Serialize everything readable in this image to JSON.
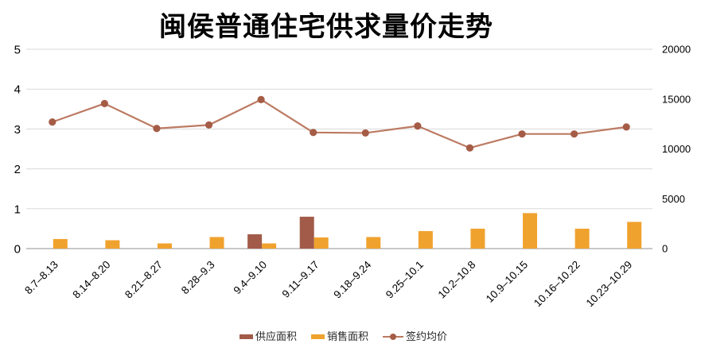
{
  "title": "闽侯普通住宅供求量价走势",
  "colors": {
    "supply_bar": "#A25B49",
    "sales_bar": "#F0A22E",
    "price_line": "#BC7A62",
    "price_marker": "#A55C46",
    "gridline": "#DADADA",
    "axis_line": "#C8C8C8",
    "tick_text": "#000000",
    "background": "#FFFFFF"
  },
  "chart_data": {
    "type": "combo",
    "title": "闽侯普通住宅供求量价走势",
    "categories": [
      "8.7–8.13",
      "8.14–8.20",
      "8.21–8.27",
      "8.28–9.3",
      "9.4–9.10",
      "9.11–9.17",
      "9.18–9.24",
      "9.25–10.1",
      "10.2–10.8",
      "10.9–10.15",
      "10.16–10.22",
      "10.23–10.29"
    ],
    "series": [
      {
        "name": "供应面积",
        "type": "bar",
        "axis": "left",
        "values": [
          0,
          0,
          0,
          0,
          0.36,
          0.8,
          0,
          0,
          0,
          0,
          0,
          0
        ]
      },
      {
        "name": "销售面积",
        "type": "bar",
        "axis": "left",
        "values": [
          0.24,
          0.21,
          0.13,
          0.29,
          0.13,
          0.28,
          0.29,
          0.44,
          0.5,
          0.89,
          0.5,
          0.67
        ]
      },
      {
        "name": "签约均价",
        "type": "line",
        "axis": "right",
        "values": [
          12700,
          14550,
          12050,
          12400,
          14950,
          11650,
          11600,
          12300,
          10100,
          11500,
          11500,
          12200
        ]
      }
    ],
    "left_axis": {
      "min": 0,
      "max": 5,
      "tick_labels": [
        "0",
        "1",
        "2",
        "3",
        "4",
        "5"
      ]
    },
    "right_axis": {
      "min": 0,
      "max": 20000,
      "tick_labels": [
        "0",
        "5000",
        "10000",
        "15000",
        "20000"
      ]
    },
    "grid": true,
    "legend_position": "bottom"
  }
}
